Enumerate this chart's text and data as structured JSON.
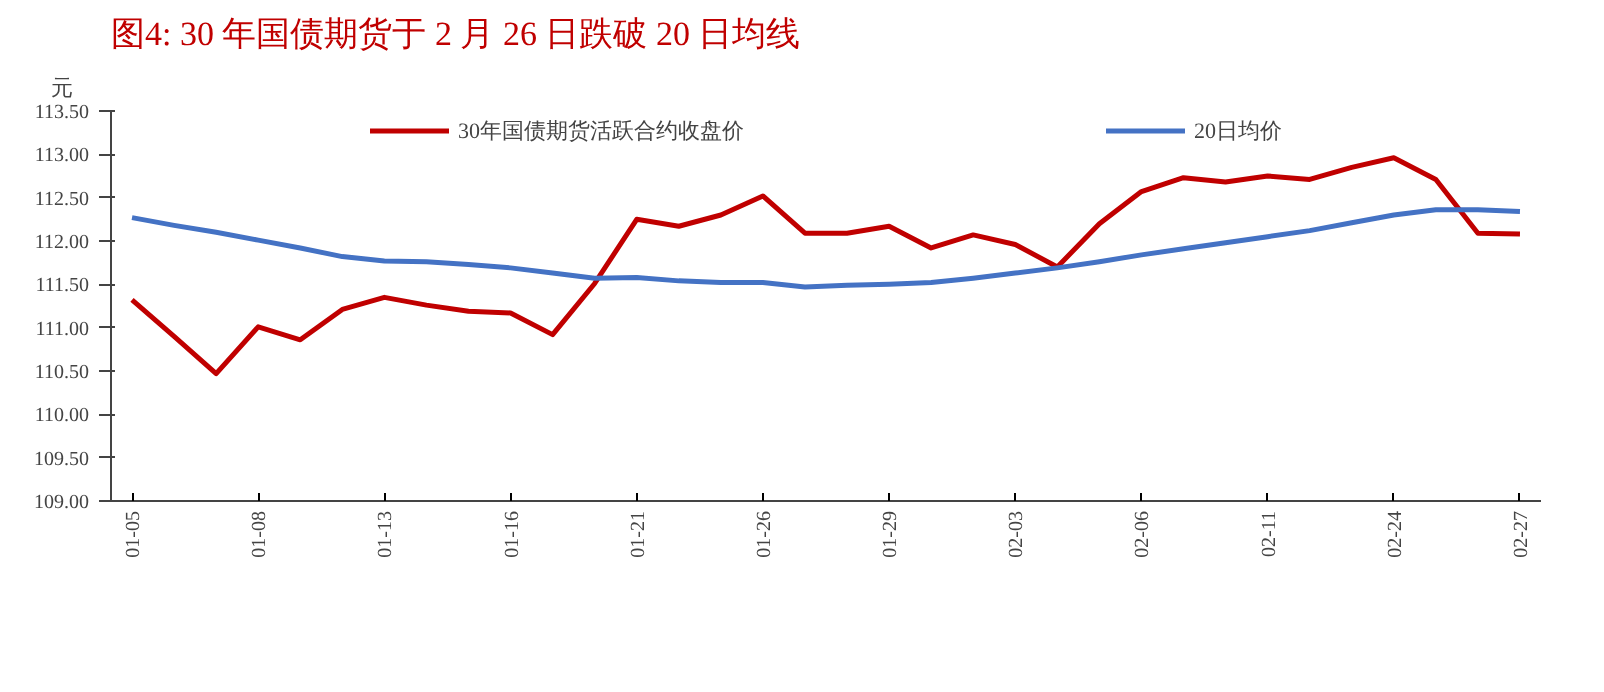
{
  "chart_data": {
    "type": "line",
    "title": "图4:   30 年国债期货于 2 月 26 日跌破 20 日均线",
    "ylabel": "元",
    "categories": [
      "01-05",
      null,
      null,
      "01-08",
      null,
      null,
      "01-13",
      null,
      null,
      "01-16",
      null,
      null,
      "01-21",
      null,
      null,
      "01-26",
      null,
      null,
      "01-29",
      null,
      null,
      "02-03",
      null,
      null,
      "02-06",
      null,
      null,
      "02-11",
      null,
      null,
      "02-24",
      null,
      null,
      "02-27"
    ],
    "series": [
      {
        "name": "30年国债期货活跃合约收盘价",
        "color": "#c00000",
        "values": [
          111.32,
          110.9,
          110.47,
          111.01,
          110.86,
          111.21,
          111.35,
          111.26,
          111.19,
          111.17,
          110.92,
          111.51,
          112.25,
          112.17,
          112.3,
          112.52,
          112.09,
          112.09,
          112.17,
          111.92,
          112.07,
          111.96,
          111.7,
          112.2,
          112.57,
          112.73,
          112.68,
          112.75,
          112.71,
          112.85,
          112.96,
          112.71,
          112.09,
          112.08
        ]
      },
      {
        "name": "20日均价",
        "color": "#4472c4",
        "values": [
          112.27,
          112.18,
          112.1,
          112.01,
          111.92,
          111.82,
          111.77,
          111.76,
          111.73,
          111.69,
          111.63,
          111.57,
          111.58,
          111.54,
          111.52,
          111.52,
          111.47,
          111.49,
          111.5,
          111.52,
          111.57,
          111.63,
          111.69,
          111.76,
          111.84,
          111.91,
          111.98,
          112.05,
          112.12,
          112.21,
          112.3,
          112.36,
          112.36,
          112.34
        ]
      }
    ],
    "ylim": [
      109,
      113.5
    ],
    "yticks": [
      {
        "value": 109,
        "label": "109.00"
      },
      {
        "value": 109.5,
        "label": "109.50"
      },
      {
        "value": 110,
        "label": "110.00"
      },
      {
        "value": 110.5,
        "label": "110.50"
      },
      {
        "value": 111,
        "label": "111.00"
      },
      {
        "value": 111.5,
        "label": "111.50"
      },
      {
        "value": 112,
        "label": "112.00"
      },
      {
        "value": 112.5,
        "label": "112.50"
      },
      {
        "value": 113,
        "label": "113.00"
      },
      {
        "value": 113.5,
        "label": "113.50"
      }
    ],
    "grid": false,
    "legend": "top",
    "marker": "none",
    "line_style": "solid"
  }
}
